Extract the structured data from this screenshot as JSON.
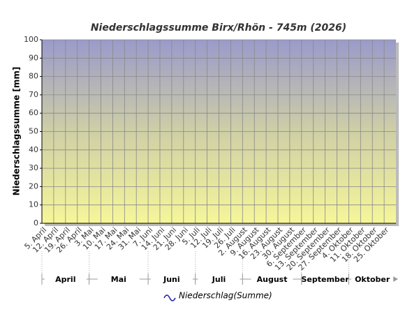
{
  "chart_data": {
    "type": "line",
    "title": "Niederschlagssumme Birx/Rhön - 745m (2026)",
    "y_label": "Niederschlagssumme [mm]",
    "categories": [
      "5. April",
      "12. April",
      "19. April",
      "26. April",
      "3. Mai",
      "10. Mai",
      "17. Mai",
      "24. Mai",
      "31. Mai",
      "7. Juni",
      "14. Juni",
      "21. Juni",
      "28. Juni",
      "5. Juli",
      "12. Juli",
      "19. Juli",
      "26. Juli",
      "2. August",
      "9. August",
      "16. August",
      "23. August",
      "30. August",
      "6. September",
      "13. September",
      "20. September",
      "27. September",
      "4. Oktober",
      "11. Oktober",
      "18. Oktober",
      "25. Oktober"
    ],
    "months": [
      "April",
      "Mai",
      "Juni",
      "Juli",
      "August",
      "September",
      "Oktober"
    ],
    "series": [
      {
        "name": "Niederschlag(Summe)",
        "color": "#1a1aa6",
        "values": [
          null,
          null,
          null,
          null,
          null,
          null,
          null,
          null,
          null,
          null,
          null,
          null,
          null,
          null,
          null,
          null,
          null,
          null,
          null,
          null,
          null,
          null,
          null,
          null,
          null,
          null,
          null,
          null,
          null,
          null
        ]
      }
    ],
    "ylim": [
      0,
      100
    ],
    "yticks": [
      0,
      10,
      20,
      30,
      40,
      50,
      60,
      70,
      80,
      90,
      100
    ],
    "grid": true
  }
}
